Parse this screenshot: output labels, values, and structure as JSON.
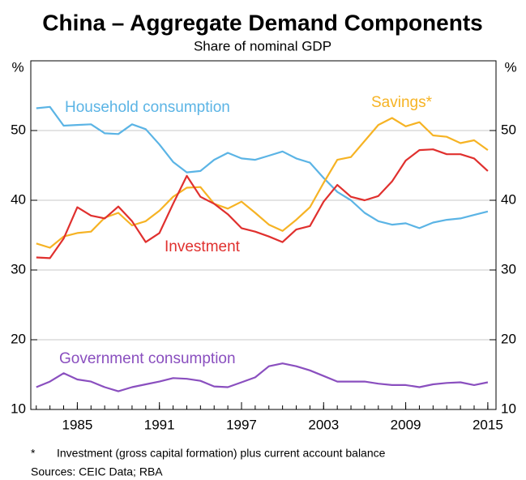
{
  "chart_data": {
    "type": "line",
    "title": "China – Aggregate Demand Components",
    "subtitle": "Share of nominal GDP",
    "y_unit_left": "%",
    "y_unit_right": "%",
    "x": [
      1982,
      1983,
      1984,
      1985,
      1986,
      1987,
      1988,
      1989,
      1990,
      1991,
      1992,
      1993,
      1994,
      1995,
      1996,
      1997,
      1998,
      1999,
      2000,
      2001,
      2002,
      2003,
      2004,
      2005,
      2006,
      2007,
      2008,
      2009,
      2010,
      2011,
      2012,
      2013,
      2014,
      2015
    ],
    "series": [
      {
        "name": "Household consumption",
        "color": "#5bb4e5",
        "values": [
          53.2,
          53.4,
          50.7,
          50.8,
          50.9,
          49.6,
          49.5,
          50.9,
          50.2,
          48,
          45.5,
          44,
          44.2,
          45.8,
          46.8,
          46,
          45.8,
          46.4,
          47,
          46,
          45.4,
          43.2,
          41.2,
          40,
          38.2,
          37,
          36.5,
          36.7,
          36,
          36.8,
          37.2,
          37.4,
          37.9,
          38.4
        ]
      },
      {
        "name": "Savings*",
        "color": "#f6b324",
        "values": [
          33.8,
          33.2,
          34.8,
          35.3,
          35.5,
          37.5,
          38.2,
          36.4,
          37,
          38.5,
          40.5,
          41.8,
          41.9,
          39.5,
          38.8,
          39.8,
          38.2,
          36.5,
          35.6,
          37.2,
          39,
          42.5,
          45.8,
          46.2,
          48.5,
          50.8,
          51.8,
          50.6,
          51.2,
          49.3,
          49.1,
          48.2,
          48.6,
          47.2
        ]
      },
      {
        "name": "Investment",
        "color": "#e0302e",
        "values": [
          31.8,
          31.7,
          34.5,
          39,
          37.8,
          37.4,
          39.1,
          37,
          34,
          35.3,
          39.5,
          43.5,
          40.5,
          39.5,
          38,
          36,
          35.5,
          34.8,
          34,
          35.8,
          36.3,
          39.8,
          42.2,
          40.5,
          40,
          40.6,
          42.7,
          45.7,
          47.2,
          47.3,
          46.6,
          46.6,
          46,
          44.2
        ]
      },
      {
        "name": "Government consumption",
        "color": "#8a4fbf",
        "values": [
          13.2,
          14,
          15.2,
          14.3,
          14,
          13.2,
          12.6,
          13.2,
          13.6,
          14,
          14.5,
          14.4,
          14.1,
          13.3,
          13.2,
          13.9,
          14.6,
          16.2,
          16.6,
          16.2,
          15.6,
          14.8,
          14,
          14,
          14,
          13.7,
          13.5,
          13.5,
          13.2,
          13.6,
          13.8,
          13.9,
          13.5,
          13.9
        ]
      }
    ],
    "xlim": [
      1981.6,
      2015.6
    ],
    "xticks": [
      1985,
      1991,
      1997,
      2003,
      2009,
      2015
    ],
    "ylim": [
      10,
      60
    ],
    "yticks": [
      10,
      20,
      30,
      40,
      50
    ],
    "grid": true,
    "footnote_marker": "*",
    "footnote": "Investment (gross capital formation) plus current account balance",
    "sources": "Sources: CEIC Data; RBA"
  }
}
